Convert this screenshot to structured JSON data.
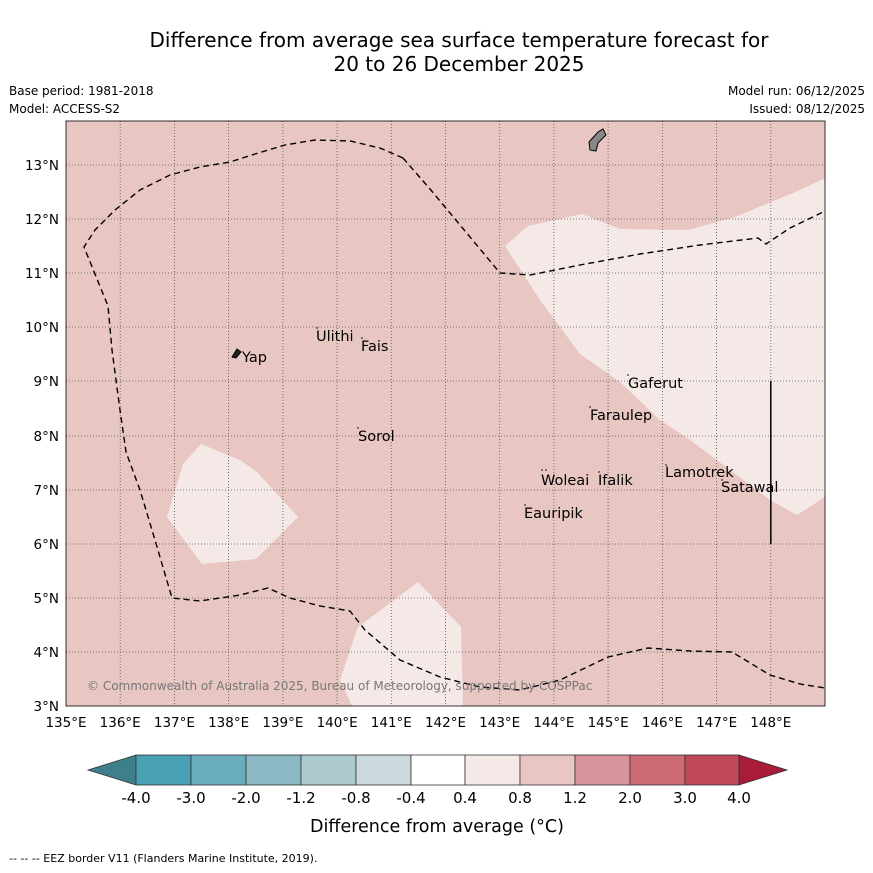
{
  "title": {
    "line1": "Difference from average sea surface temperature forecast for",
    "line2": "20 to 26 December 2025"
  },
  "meta": {
    "base_period": "Base period: 1981-2018",
    "model": "Model: ACCESS-S2",
    "model_run": "Model run: 06/12/2025",
    "issued": "Issued: 08/12/2025"
  },
  "map": {
    "lon_ticks": [
      "135°E",
      "136°E",
      "137°E",
      "138°E",
      "139°E",
      "140°E",
      "141°E",
      "142°E",
      "143°E",
      "144°E",
      "145°E",
      "146°E",
      "147°E",
      "148°E"
    ],
    "lat_ticks": [
      "3°N",
      "4°N",
      "5°N",
      "6°N",
      "7°N",
      "8°N",
      "9°N",
      "10°N",
      "11°N",
      "12°N",
      "13°N"
    ],
    "places": [
      {
        "name": "Yap"
      },
      {
        "name": "Ulithi"
      },
      {
        "name": "Fais"
      },
      {
        "name": "Sorol"
      },
      {
        "name": "Gaferut"
      },
      {
        "name": "Faraulep"
      },
      {
        "name": "Woleai"
      },
      {
        "name": "Ifalik"
      },
      {
        "name": "Lamotrek"
      },
      {
        "name": "Satawal"
      },
      {
        "name": "Eauripik"
      }
    ],
    "copyright": "© Commonwealth of Australia 2025, Bureau of Meteorology, supported by COSPPac",
    "colors": {
      "base_fill": "#e8c6c2",
      "light_fill": "#f5e9e7"
    }
  },
  "colorbar": {
    "tick_labels": [
      "-4.0",
      "-3.0",
      "-2.0",
      "-1.2",
      "-0.8",
      "-0.4",
      "0.4",
      "0.8",
      "1.2",
      "2.0",
      "3.0",
      "4.0"
    ],
    "colors": [
      "#3d7f8a",
      "#48a1b3",
      "#6aadbc",
      "#8bb8c4",
      "#acc9d0",
      "#c9d9dc",
      "#ffffff",
      "#f5e9e7",
      "#e8c6c2",
      "#d9939a",
      "#cd6b75",
      "#c0485a",
      "#a81c3a"
    ],
    "label": "Difference from average (°C)"
  },
  "footer": {
    "eez_legend": "--  --  -- EEZ border V11 (Flanders Marine Institute, 2019)."
  }
}
